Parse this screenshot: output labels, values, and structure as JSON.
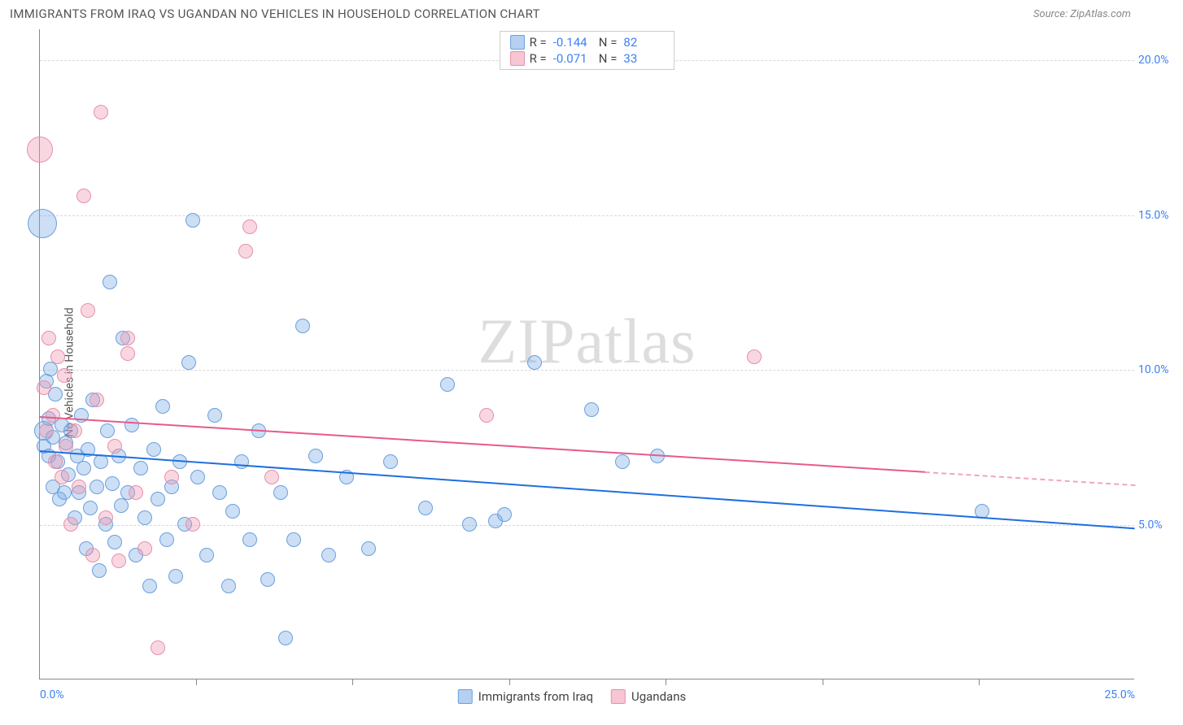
{
  "header": {
    "title": "IMMIGRANTS FROM IRAQ VS UGANDAN NO VEHICLES IN HOUSEHOLD CORRELATION CHART",
    "source": "Source: ZipAtlas.com"
  },
  "ylabel": "No Vehicles in Household",
  "watermark": "ZIPatlas",
  "chart": {
    "type": "scatter",
    "xlim": [
      0,
      25
    ],
    "ylim": [
      0,
      21
    ],
    "background_color": "#ffffff",
    "grid_color": "#d8d8d8",
    "axis_color": "#888888",
    "tick_label_color": "#3b82f6",
    "tick_fontsize": 14,
    "yticks": [
      {
        "v": 5,
        "label": "5.0%"
      },
      {
        "v": 10,
        "label": "10.0%"
      },
      {
        "v": 15,
        "label": "15.0%"
      },
      {
        "v": 20,
        "label": "20.0%"
      }
    ],
    "xticks_minor": [
      3.57,
      7.14,
      10.71,
      14.29,
      17.86,
      21.43
    ],
    "xticks_label": [
      {
        "v": 0,
        "label": "0.0%",
        "align": "left"
      },
      {
        "v": 25,
        "label": "25.0%",
        "align": "right"
      }
    ],
    "series": [
      {
        "name": "Immigrants from Iraq",
        "fill": "rgba(120,170,230,0.38)",
        "stroke": "#6aa0dd",
        "trend_color": "#1f6fe0",
        "trend": {
          "x1": 0,
          "y1": 7.4,
          "x2": 25,
          "y2": 4.9,
          "dash_from_x": 25
        },
        "R": "-0.144",
        "N": "82",
        "default_r": 9,
        "points": [
          {
            "x": 0.05,
            "y": 14.7,
            "r": 18
          },
          {
            "x": 0.1,
            "y": 8.0,
            "r": 12
          },
          {
            "x": 0.1,
            "y": 7.5
          },
          {
            "x": 0.15,
            "y": 9.6
          },
          {
            "x": 0.2,
            "y": 7.2
          },
          {
            "x": 0.2,
            "y": 8.4
          },
          {
            "x": 0.25,
            "y": 10.0
          },
          {
            "x": 0.3,
            "y": 6.2
          },
          {
            "x": 0.3,
            "y": 7.8
          },
          {
            "x": 0.35,
            "y": 9.2
          },
          {
            "x": 0.4,
            "y": 7.0
          },
          {
            "x": 0.45,
            "y": 5.8
          },
          {
            "x": 0.5,
            "y": 8.2
          },
          {
            "x": 0.55,
            "y": 6.0
          },
          {
            "x": 0.6,
            "y": 7.6
          },
          {
            "x": 0.65,
            "y": 6.6
          },
          {
            "x": 0.7,
            "y": 8.0
          },
          {
            "x": 0.8,
            "y": 5.2
          },
          {
            "x": 0.85,
            "y": 7.2
          },
          {
            "x": 0.9,
            "y": 6.0
          },
          {
            "x": 0.95,
            "y": 8.5
          },
          {
            "x": 1.0,
            "y": 6.8
          },
          {
            "x": 1.05,
            "y": 4.2
          },
          {
            "x": 1.1,
            "y": 7.4
          },
          {
            "x": 1.15,
            "y": 5.5
          },
          {
            "x": 1.2,
            "y": 9.0
          },
          {
            "x": 1.3,
            "y": 6.2
          },
          {
            "x": 1.35,
            "y": 3.5
          },
          {
            "x": 1.4,
            "y": 7.0
          },
          {
            "x": 1.5,
            "y": 5.0
          },
          {
            "x": 1.55,
            "y": 8.0
          },
          {
            "x": 1.6,
            "y": 12.8
          },
          {
            "x": 1.65,
            "y": 6.3
          },
          {
            "x": 1.7,
            "y": 4.4
          },
          {
            "x": 1.8,
            "y": 7.2
          },
          {
            "x": 1.85,
            "y": 5.6
          },
          {
            "x": 1.9,
            "y": 11.0
          },
          {
            "x": 2.0,
            "y": 6.0
          },
          {
            "x": 2.1,
            "y": 8.2
          },
          {
            "x": 2.2,
            "y": 4.0
          },
          {
            "x": 2.3,
            "y": 6.8
          },
          {
            "x": 2.4,
            "y": 5.2
          },
          {
            "x": 2.5,
            "y": 3.0
          },
          {
            "x": 2.6,
            "y": 7.4
          },
          {
            "x": 2.7,
            "y": 5.8
          },
          {
            "x": 2.8,
            "y": 8.8
          },
          {
            "x": 2.9,
            "y": 4.5
          },
          {
            "x": 3.0,
            "y": 6.2
          },
          {
            "x": 3.1,
            "y": 3.3
          },
          {
            "x": 3.2,
            "y": 7.0
          },
          {
            "x": 3.3,
            "y": 5.0
          },
          {
            "x": 3.4,
            "y": 10.2
          },
          {
            "x": 3.5,
            "y": 14.8
          },
          {
            "x": 3.6,
            "y": 6.5
          },
          {
            "x": 3.8,
            "y": 4.0
          },
          {
            "x": 4.0,
            "y": 8.5
          },
          {
            "x": 4.1,
            "y": 6.0
          },
          {
            "x": 4.3,
            "y": 3.0
          },
          {
            "x": 4.4,
            "y": 5.4
          },
          {
            "x": 4.6,
            "y": 7.0
          },
          {
            "x": 4.8,
            "y": 4.5
          },
          {
            "x": 5.0,
            "y": 8.0
          },
          {
            "x": 5.2,
            "y": 3.2
          },
          {
            "x": 5.5,
            "y": 6.0
          },
          {
            "x": 5.6,
            "y": 1.3
          },
          {
            "x": 5.8,
            "y": 4.5
          },
          {
            "x": 6.0,
            "y": 11.4
          },
          {
            "x": 6.3,
            "y": 7.2
          },
          {
            "x": 6.6,
            "y": 4.0
          },
          {
            "x": 7.0,
            "y": 6.5
          },
          {
            "x": 7.5,
            "y": 4.2
          },
          {
            "x": 8.0,
            "y": 7.0
          },
          {
            "x": 8.8,
            "y": 5.5
          },
          {
            "x": 9.3,
            "y": 9.5
          },
          {
            "x": 9.8,
            "y": 5.0
          },
          {
            "x": 10.4,
            "y": 5.1
          },
          {
            "x": 10.6,
            "y": 5.3
          },
          {
            "x": 11.3,
            "y": 10.2
          },
          {
            "x": 12.6,
            "y": 8.7
          },
          {
            "x": 13.3,
            "y": 7.0
          },
          {
            "x": 14.1,
            "y": 7.2
          },
          {
            "x": 21.5,
            "y": 5.4
          }
        ]
      },
      {
        "name": "Ugandans",
        "fill": "rgba(240,150,175,0.38)",
        "stroke": "#e590ab",
        "trend_color": "#e75a8a",
        "trend": {
          "x1": 0,
          "y1": 8.5,
          "x2": 25,
          "y2": 6.3,
          "dash_from_x": 20.2
        },
        "R": "-0.071",
        "N": "33",
        "default_r": 9,
        "points": [
          {
            "x": 0.0,
            "y": 17.1,
            "r": 16
          },
          {
            "x": 0.1,
            "y": 9.4
          },
          {
            "x": 0.15,
            "y": 8.0
          },
          {
            "x": 0.2,
            "y": 11.0
          },
          {
            "x": 0.3,
            "y": 8.5
          },
          {
            "x": 0.35,
            "y": 7.0
          },
          {
            "x": 0.4,
            "y": 10.4
          },
          {
            "x": 0.5,
            "y": 6.5
          },
          {
            "x": 0.55,
            "y": 9.8
          },
          {
            "x": 0.6,
            "y": 7.5
          },
          {
            "x": 0.7,
            "y": 5.0
          },
          {
            "x": 0.8,
            "y": 8.0
          },
          {
            "x": 0.9,
            "y": 6.2
          },
          {
            "x": 1.0,
            "y": 15.6
          },
          {
            "x": 1.1,
            "y": 11.9
          },
          {
            "x": 1.2,
            "y": 4.0
          },
          {
            "x": 1.3,
            "y": 9.0
          },
          {
            "x": 1.4,
            "y": 18.3
          },
          {
            "x": 1.5,
            "y": 5.2
          },
          {
            "x": 1.7,
            "y": 7.5
          },
          {
            "x": 1.8,
            "y": 3.8
          },
          {
            "x": 2.0,
            "y": 11.0
          },
          {
            "x": 2.0,
            "y": 10.5
          },
          {
            "x": 2.2,
            "y": 6.0
          },
          {
            "x": 2.4,
            "y": 4.2
          },
          {
            "x": 2.7,
            "y": 1.0
          },
          {
            "x": 3.0,
            "y": 6.5
          },
          {
            "x": 3.5,
            "y": 5.0
          },
          {
            "x": 4.7,
            "y": 13.8
          },
          {
            "x": 4.8,
            "y": 14.6
          },
          {
            "x": 5.3,
            "y": 6.5
          },
          {
            "x": 10.2,
            "y": 8.5
          },
          {
            "x": 16.3,
            "y": 10.4
          }
        ]
      }
    ]
  },
  "legend_top": {
    "rows": [
      {
        "swatch_fill": "rgba(120,170,230,0.55)",
        "swatch_stroke": "#6aa0dd",
        "R_label": "R =",
        "R": "-0.144",
        "N_label": "N =",
        "N": "82"
      },
      {
        "swatch_fill": "rgba(240,150,175,0.55)",
        "swatch_stroke": "#e590ab",
        "R_label": "R =",
        "R": "-0.071",
        "N_label": "N =",
        "N": "33"
      }
    ]
  },
  "legend_bottom": {
    "items": [
      {
        "swatch_fill": "rgba(120,170,230,0.55)",
        "swatch_stroke": "#6aa0dd",
        "label": "Immigrants from Iraq"
      },
      {
        "swatch_fill": "rgba(240,150,175,0.55)",
        "swatch_stroke": "#e590ab",
        "label": "Ugandans"
      }
    ]
  }
}
